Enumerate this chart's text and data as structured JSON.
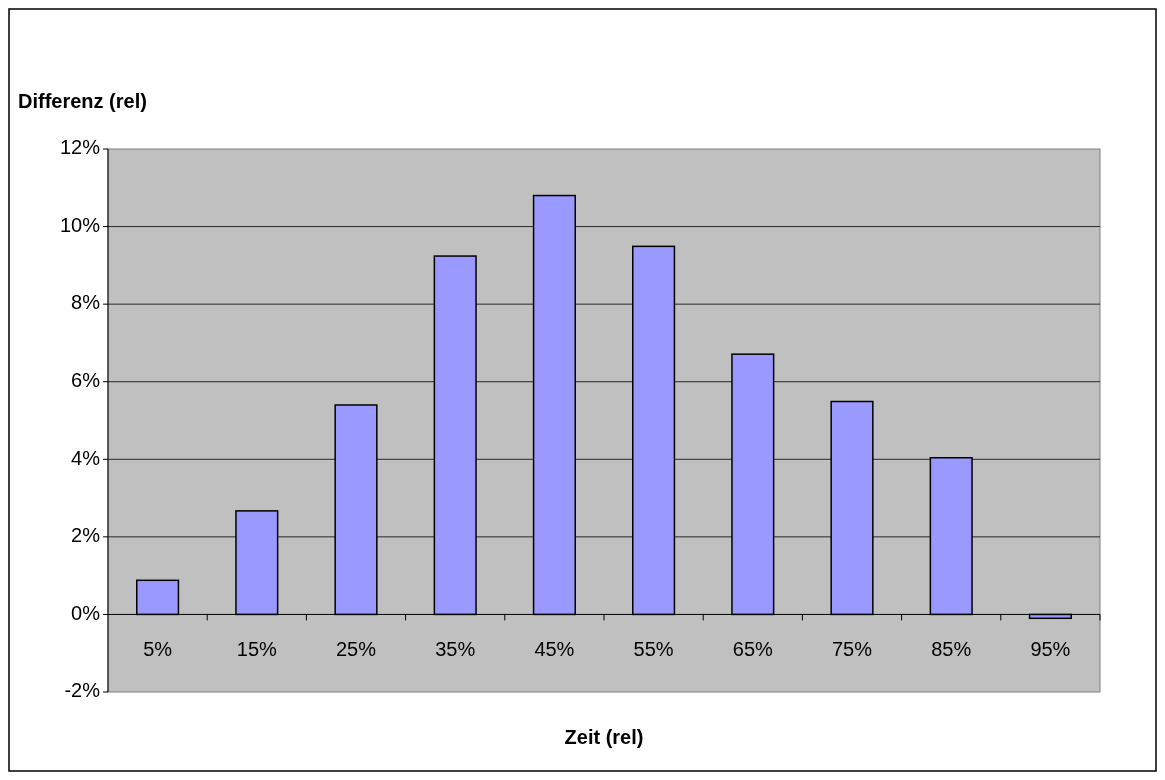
{
  "chart_data": {
    "type": "bar",
    "xlabel": "Zeit (rel)",
    "ylabel": "Differenz (rel)",
    "categories": [
      "5%",
      "15%",
      "25%",
      "35%",
      "45%",
      "55%",
      "65%",
      "75%",
      "85%",
      "95%"
    ],
    "values": [
      0.88,
      2.67,
      5.4,
      9.24,
      10.8,
      9.49,
      6.71,
      5.49,
      4.04,
      -0.1
    ],
    "color": "#9999ff",
    "ylim": [
      -2,
      12
    ],
    "yticks": [
      {
        "value": -2,
        "label": "-2%"
      },
      {
        "value": 0,
        "label": "0%"
      },
      {
        "value": 2,
        "label": "2%"
      },
      {
        "value": 4,
        "label": "4%"
      },
      {
        "value": 6,
        "label": "6%"
      },
      {
        "value": 8,
        "label": "8%"
      },
      {
        "value": 10,
        "label": "10%"
      },
      {
        "value": 12,
        "label": "12%"
      }
    ],
    "grid": "y"
  }
}
